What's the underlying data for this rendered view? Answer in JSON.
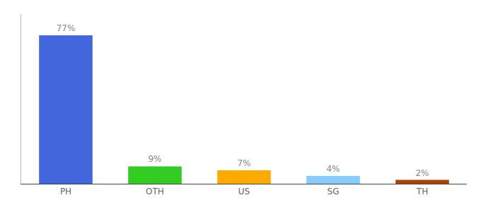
{
  "chart_data": {
    "type": "bar",
    "categories": [
      "PH",
      "OTH",
      "US",
      "SG",
      "TH"
    ],
    "values": [
      77,
      9,
      7,
      4,
      2
    ],
    "value_labels": [
      "77%",
      "9%",
      "7%",
      "4%",
      "2%"
    ],
    "colors": [
      "#4466dd",
      "#33cc22",
      "#ffaa00",
      "#88ccff",
      "#aa4400"
    ],
    "ylim": [
      0,
      88
    ],
    "data_labels": true,
    "tick_labels": "x",
    "grid": false
  }
}
